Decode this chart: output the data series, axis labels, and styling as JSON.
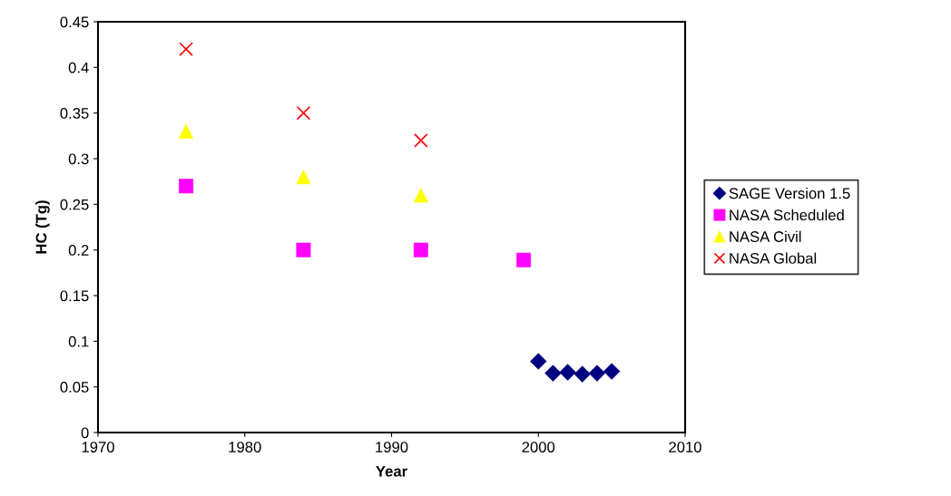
{
  "chart_data": {
    "type": "scatter",
    "xlabel": "Year",
    "ylabel": "HC (Tg)",
    "xlim": [
      1970,
      2010
    ],
    "xticks": [
      1970,
      1980,
      1990,
      2000,
      2010
    ],
    "ylim": [
      0,
      0.45
    ],
    "yticks": [
      0,
      0.05,
      0.1,
      0.15,
      0.2,
      0.25,
      0.3,
      0.35,
      0.4,
      0.45
    ],
    "grid": false,
    "legend": "right",
    "series": [
      {
        "name": "SAGE Version 1.5",
        "color": "#000080",
        "marker": "diamond",
        "x": [
          2000,
          2001,
          2002,
          2003,
          2004,
          2005
        ],
        "values": [
          0.078,
          0.065,
          0.066,
          0.064,
          0.065,
          0.067
        ]
      },
      {
        "name": "NASA Scheduled",
        "color": "#ff00ff",
        "marker": "square",
        "x": [
          1976,
          1984,
          1992,
          1999
        ],
        "values": [
          0.27,
          0.2,
          0.2,
          0.189
        ]
      },
      {
        "name": "NASA Civil",
        "color": "#ffff00",
        "marker": "triangle",
        "x": [
          1976,
          1984,
          1992
        ],
        "values": [
          0.33,
          0.28,
          0.26
        ]
      },
      {
        "name": "NASA Global",
        "color": "#ff0000",
        "marker": "cross",
        "x": [
          1976,
          1984,
          1992
        ],
        "values": [
          0.42,
          0.35,
          0.32
        ]
      }
    ]
  }
}
